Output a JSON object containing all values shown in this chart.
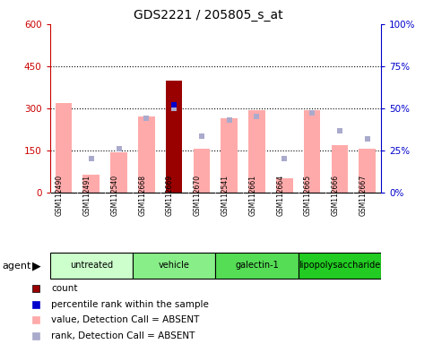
{
  "title": "GDS2221 / 205805_s_at",
  "samples": [
    "GSM112490",
    "GSM112491",
    "GSM112540",
    "GSM112668",
    "GSM112669",
    "GSM112670",
    "GSM112541",
    "GSM112661",
    "GSM112664",
    "GSM112665",
    "GSM112666",
    "GSM112667"
  ],
  "groups": [
    {
      "label": "untreated",
      "indices": [
        0,
        1,
        2
      ],
      "color": "#ccffcc"
    },
    {
      "label": "vehicle",
      "indices": [
        3,
        4,
        5
      ],
      "color": "#88ee88"
    },
    {
      "label": "galectin-1",
      "indices": [
        6,
        7,
        8
      ],
      "color": "#55dd55"
    },
    {
      "label": "lipopolysaccharide",
      "indices": [
        9,
        10,
        11
      ],
      "color": "#22cc22"
    }
  ],
  "bar_values": [
    320,
    65,
    145,
    270,
    400,
    155,
    265,
    295,
    50,
    295,
    170,
    155
  ],
  "bar_is_count": [
    false,
    false,
    false,
    false,
    true,
    false,
    false,
    false,
    false,
    false,
    false,
    false
  ],
  "rank_values": [
    null,
    120,
    155,
    265,
    300,
    200,
    260,
    270,
    120,
    285,
    220,
    190
  ],
  "percentile_values": [
    null,
    null,
    null,
    null,
    52,
    null,
    null,
    null,
    null,
    null,
    null,
    null
  ],
  "ylim_left": [
    0,
    600
  ],
  "ylim_right": [
    0,
    100
  ],
  "yticks_left": [
    0,
    150,
    300,
    450,
    600
  ],
  "yticks_right": [
    0,
    25,
    50,
    75,
    100
  ],
  "ytick_labels_left": [
    "0",
    "150",
    "300",
    "450",
    "600"
  ],
  "ytick_labels_right": [
    "0%",
    "25%",
    "50%",
    "75%",
    "100%"
  ],
  "bar_color_normal": "#ffaaaa",
  "bar_color_count": "#990000",
  "rank_color": "#aaaacc",
  "percentile_color": "#0000cc",
  "grid_color": "#000000",
  "bg_color": "#ffffff",
  "plot_bg": "#ffffff",
  "left_axis_color": "#cc0000",
  "right_axis_color": "#0000cc",
  "gray_bg": "#cccccc"
}
